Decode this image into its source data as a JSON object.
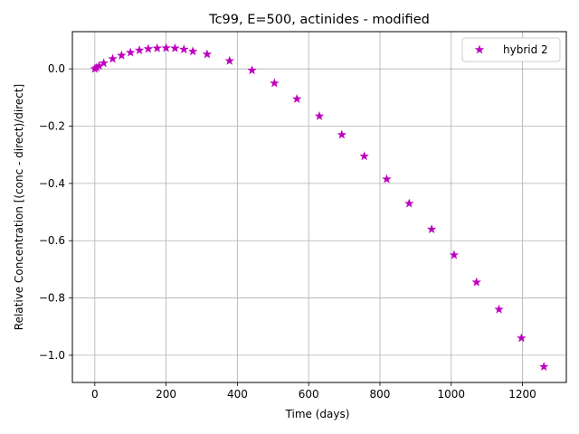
{
  "chart_data": {
    "type": "scatter",
    "title": "Tc99, E=500, actinides - modified",
    "xlabel": "Time (days)",
    "ylabel": "Relative Concentration [(conc - direct)/direct]",
    "xlim": [
      -63,
      1323
    ],
    "ylim": [
      -1.095,
      0.13
    ],
    "x_ticks": [
      0,
      200,
      400,
      600,
      800,
      1000,
      1200
    ],
    "x_tick_labels": [
      "0",
      "200",
      "400",
      "600",
      "800",
      "1000",
      "1200"
    ],
    "y_ticks": [
      0.0,
      -0.2,
      -0.4,
      -0.6,
      -0.8,
      -1.0
    ],
    "y_tick_labels": [
      "0.0",
      "−0.2",
      "−0.4",
      "−0.6",
      "−0.8",
      "−1.0"
    ],
    "grid": true,
    "legend_position": "top-right",
    "series": [
      {
        "name": "hybrid 2",
        "color": "#bf00bf",
        "marker": "star",
        "x": [
          0,
          5,
          12,
          25,
          50,
          75,
          100,
          125,
          150,
          175,
          200,
          225,
          250,
          275,
          315,
          378,
          441,
          504,
          567,
          630,
          693,
          756,
          819,
          882,
          945,
          1008,
          1071,
          1134,
          1197,
          1260
        ],
        "y": [
          0.0,
          0.004,
          0.01,
          0.02,
          0.035,
          0.047,
          0.057,
          0.065,
          0.07,
          0.072,
          0.073,
          0.072,
          0.068,
          0.061,
          0.051,
          0.028,
          -0.005,
          -0.05,
          -0.105,
          -0.165,
          -0.23,
          -0.305,
          -0.385,
          -0.47,
          -0.56,
          -0.65,
          -0.745,
          -0.84,
          -0.94,
          -1.04
        ]
      }
    ]
  }
}
